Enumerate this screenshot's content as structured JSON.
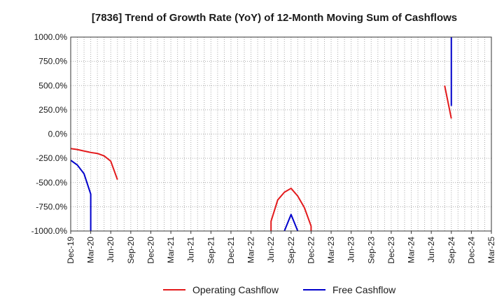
{
  "chart_data": {
    "type": "line",
    "title": "[7836]  Trend of Growth Rate (YoY) of 12-Month Moving Sum of Cashflows",
    "xlabel": "",
    "ylabel": "",
    "ylim": [
      -1000,
      1000
    ],
    "y_ticks": [
      1000,
      750,
      500,
      250,
      0,
      -250,
      -500,
      -750,
      -1000
    ],
    "y_tick_labels": [
      "1000.0%",
      "750.0%",
      "500.0%",
      "250.0%",
      "0.0%",
      "-250.0%",
      "-500.0%",
      "-750.0%",
      "-1000.0%"
    ],
    "x_range": [
      "2019-12",
      "2025-03"
    ],
    "x_tick_labels": [
      "Dec-19",
      "Mar-20",
      "Jun-20",
      "Sep-20",
      "Dec-20",
      "Mar-21",
      "Jun-21",
      "Sep-21",
      "Dec-21",
      "Mar-22",
      "Jun-22",
      "Sep-22",
      "Dec-22",
      "Mar-23",
      "Jun-23",
      "Sep-23",
      "Dec-23",
      "Mar-24",
      "Jun-24",
      "Sep-24",
      "Dec-24",
      "Mar-25"
    ],
    "grid": true,
    "legend_position": "bottom",
    "series": [
      {
        "name": "Operating Cashflow",
        "color": "#e31a1c",
        "segments": [
          [
            [
              "2019-12",
              -150
            ],
            [
              "2020-01",
              -160
            ],
            [
              "2020-02",
              -175
            ],
            [
              "2020-03",
              -190
            ],
            [
              "2020-04",
              -200
            ],
            [
              "2020-05",
              -225
            ],
            [
              "2020-06",
              -280
            ],
            [
              "2020-07",
              -470
            ]
          ],
          [
            [
              "2022-06",
              -1000
            ],
            [
              "2022-06",
              -900
            ],
            [
              "2022-07",
              -680
            ],
            [
              "2022-08",
              -600
            ],
            [
              "2022-09",
              -560
            ],
            [
              "2022-10",
              -640
            ],
            [
              "2022-11",
              -760
            ],
            [
              "2022-12",
              -950
            ],
            [
              "2022-12",
              -1000
            ]
          ],
          [
            [
              "2024-08",
              500
            ],
            [
              "2024-09",
              160
            ]
          ]
        ]
      },
      {
        "name": "Free Cashflow",
        "color": "#0000cc",
        "segments": [
          [
            [
              "2019-12",
              -270
            ],
            [
              "2020-01",
              -320
            ],
            [
              "2020-02",
              -410
            ],
            [
              "2020-03",
              -620
            ],
            [
              "2020-03",
              -1000
            ]
          ],
          [
            [
              "2022-08",
              -1000
            ],
            [
              "2022-09",
              -830
            ],
            [
              "2022-10",
              -1000
            ]
          ],
          [
            [
              "2024-09",
              1000
            ],
            [
              "2024-09",
              290
            ]
          ]
        ]
      }
    ]
  }
}
